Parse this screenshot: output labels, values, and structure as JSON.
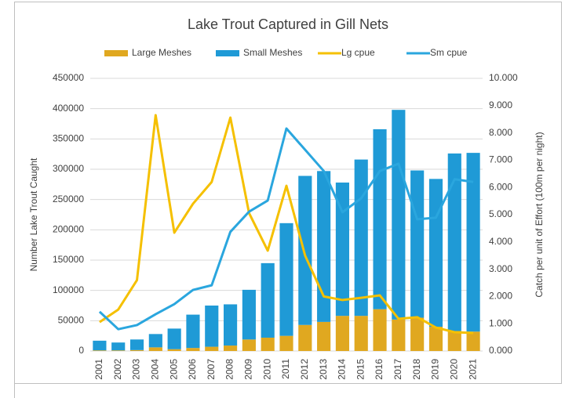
{
  "chart_data": {
    "type": "bar",
    "title": "Lake Trout Captured in Gill Nets",
    "y_label": "Number Lake Trout Caught",
    "y2_label": "Catch per unit of Effort (100m per night)",
    "categories": [
      "2001",
      "2002",
      "2003",
      "2004",
      "2005",
      "2006",
      "2007",
      "2008",
      "2009",
      "2010",
      "2011",
      "2012",
      "2013",
      "2014",
      "2015",
      "2016",
      "2017",
      "2018",
      "2019",
      "2020",
      "2021"
    ],
    "stacked": true,
    "grid": true,
    "legend": "top",
    "series": [
      {
        "name": "Large Meshes",
        "type": "bar",
        "color": "#e0a820",
        "values": [
          1000,
          1000,
          1500,
          6000,
          3000,
          5000,
          7000,
          9000,
          19000,
          22000,
          25000,
          43000,
          48000,
          58000,
          58000,
          69000,
          52000,
          55000,
          40000,
          33000,
          32000
        ]
      },
      {
        "name": "Small Meshes",
        "type": "bar",
        "color": "#1f9ad6",
        "values": [
          16000,
          13000,
          17500,
          22000,
          34000,
          55000,
          68000,
          68000,
          82000,
          123000,
          186000,
          246000,
          249000,
          220000,
          258000,
          297000,
          346000,
          243000,
          244000,
          293000,
          295000
        ]
      },
      {
        "name": "Lg cpue",
        "type": "line",
        "axis": "y2",
        "color": "#f5c000",
        "values": [
          1.06,
          1.52,
          2.6,
          8.65,
          4.34,
          5.4,
          6.2,
          8.56,
          5.06,
          3.68,
          6.06,
          3.5,
          2.0,
          1.87,
          1.95,
          2.04,
          1.18,
          1.24,
          0.86,
          0.69,
          0.66
        ]
      },
      {
        "name": "Sm cpue",
        "type": "line",
        "axis": "y2",
        "color": "#2aa6de",
        "values": [
          1.44,
          0.8,
          0.95,
          1.35,
          1.72,
          2.24,
          2.41,
          4.37,
          5.11,
          5.52,
          8.16,
          7.38,
          6.6,
          5.09,
          5.6,
          6.6,
          6.87,
          4.83,
          4.89,
          6.3,
          6.2
        ]
      }
    ],
    "ylim": [
      0,
      450000
    ],
    "yticks": [
      0,
      50000,
      100000,
      150000,
      200000,
      250000,
      300000,
      350000,
      400000,
      450000
    ],
    "y2lim": [
      0,
      10
    ],
    "y2ticks": [
      {
        "value": 0,
        "label": "0.000"
      },
      {
        "value": 1,
        "label": "1.000"
      },
      {
        "value": 2,
        "label": "2.000"
      },
      {
        "value": 3,
        "label": "3.000"
      },
      {
        "value": 4,
        "label": "4.000"
      },
      {
        "value": 5,
        "label": "5.000"
      },
      {
        "value": 6,
        "label": "6.000"
      },
      {
        "value": 7,
        "label": "7.000"
      },
      {
        "value": 8,
        "label": "8.000"
      },
      {
        "value": 9,
        "label": "9.000"
      },
      {
        "value": 10,
        "label": "10.000"
      }
    ]
  }
}
